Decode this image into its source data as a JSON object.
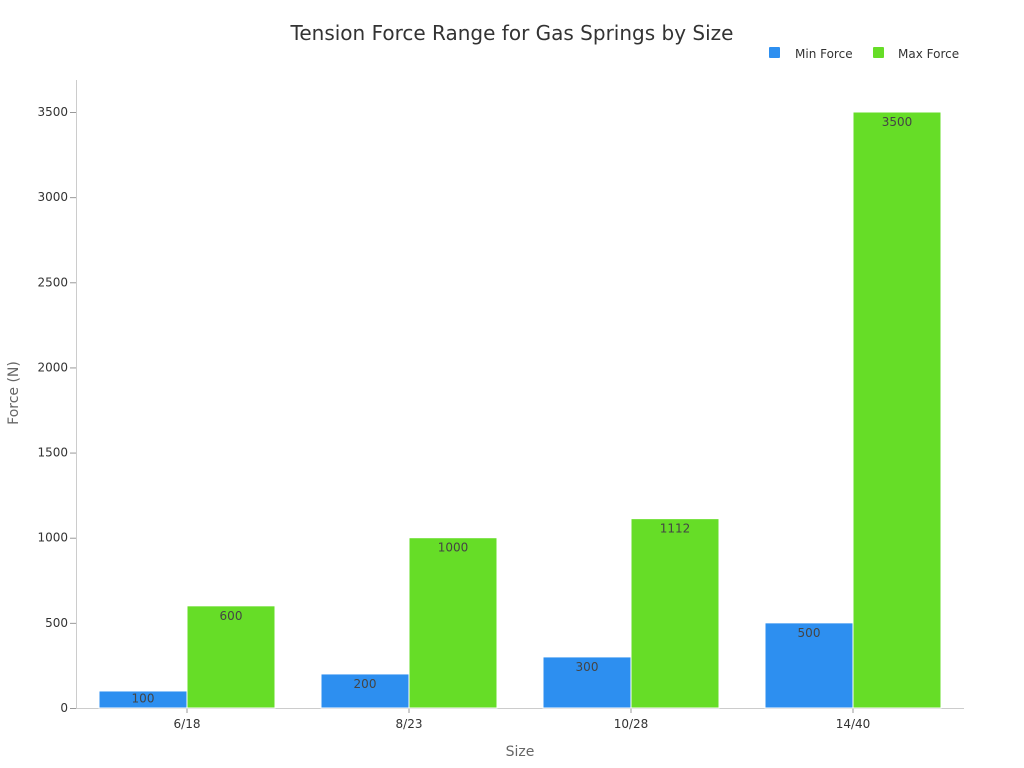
{
  "chart_data": {
    "type": "bar",
    "title": "Tension Force Range for Gas Springs by Size",
    "xlabel": "Size",
    "ylabel": "Force (N)",
    "categories": [
      "6/18",
      "8/23",
      "10/28",
      "14/40"
    ],
    "series": [
      {
        "name": "Min Force",
        "color": "#2d8ff0",
        "values": [
          100,
          200,
          300,
          500
        ]
      },
      {
        "name": "Max Force",
        "color": "#66dd27",
        "values": [
          600,
          1000,
          1112,
          3500
        ]
      }
    ],
    "ylim": [
      0,
      3700
    ],
    "yticks": [
      0,
      500,
      1000,
      1500,
      2000,
      2500,
      3000,
      3500
    ],
    "grid": false,
    "legend_position": "top-right",
    "data_labels": true
  }
}
